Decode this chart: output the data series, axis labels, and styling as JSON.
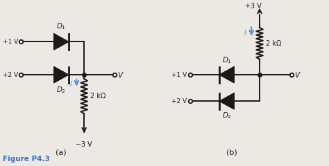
{
  "bg_color": "#ece9e4",
  "line_color": "#1a1a1a",
  "blue_color": "#5b8fcf",
  "fig_label": "Figure P4.3",
  "fig_label_color": "#3a6fc4",
  "sub_a": "(a)",
  "sub_b": "(b)"
}
